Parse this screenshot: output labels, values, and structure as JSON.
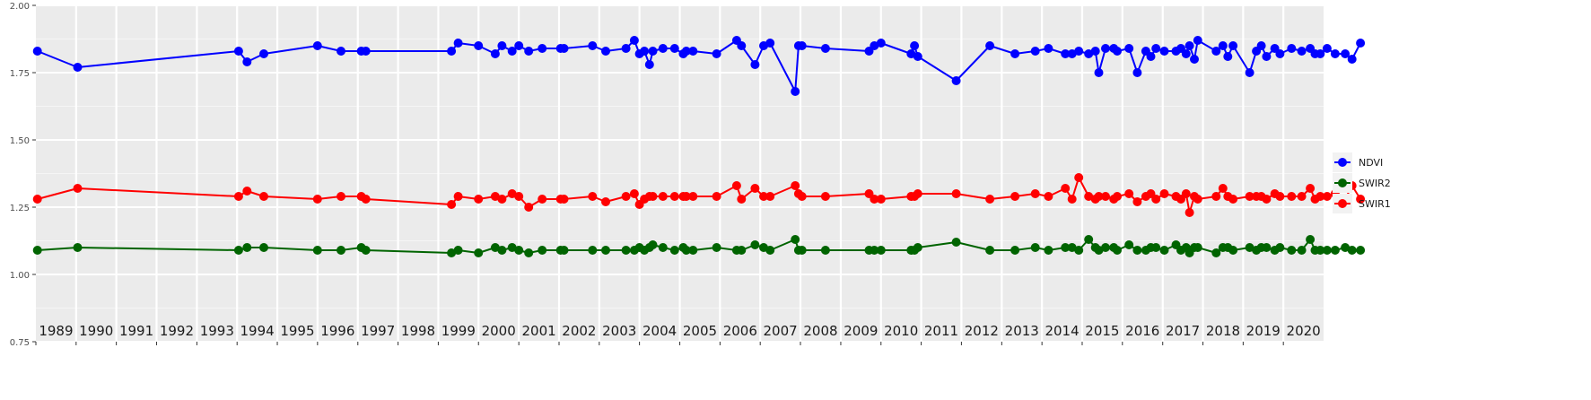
{
  "chart_data": {
    "type": "line",
    "title": "",
    "xlabel": "",
    "ylabel": "",
    "ylim": [
      0.75,
      2.0
    ],
    "xlim": [
      "1989-01-01",
      "2020-12-31"
    ],
    "y_ticks": [
      "0.75",
      "1.00",
      "1.25",
      "1.50",
      "1.75",
      "2.00"
    ],
    "year_labels": [
      "1989",
      "1990",
      "1991",
      "1992",
      "1993",
      "1994",
      "1995",
      "1996",
      "1997",
      "1998",
      "1999",
      "2000",
      "2001",
      "2002",
      "2003",
      "2004",
      "2005",
      "2006",
      "2007",
      "2008",
      "2009",
      "2010",
      "2011",
      "2012",
      "2013",
      "2014",
      "2015",
      "2016",
      "2017",
      "2018",
      "2019",
      "2020"
    ],
    "grid": true,
    "legend_position": "right",
    "series": [
      {
        "name": "NDVI",
        "color": "#0000ff",
        "x": [
          "1989-01-15",
          "1990-01-15",
          "1994-01-15",
          "1994-04-01",
          "1994-09-01",
          "1996-01-01",
          "1996-08-01",
          "1997-02-01",
          "1997-03-15",
          "1999-05-01",
          "1999-07-01",
          "2000-01-01",
          "2000-06-01",
          "2000-08-01",
          "2000-11-01",
          "2001-01-01",
          "2001-04-01",
          "2001-08-01",
          "2002-01-15",
          "2002-02-15",
          "2002-11-01",
          "2003-03-01",
          "2003-09-01",
          "2003-11-15",
          "2004-01-01",
          "2004-02-15",
          "2004-04-01",
          "2004-05-01",
          "2004-08-01",
          "2004-11-15",
          "2005-02-01",
          "2005-03-01",
          "2005-05-01",
          "2005-12-01",
          "2006-06-01",
          "2006-07-15",
          "2006-11-15",
          "2007-02-01",
          "2007-04-01",
          "2007-11-15",
          "2007-12-15",
          "2008-01-15",
          "2008-08-15",
          "2009-09-15",
          "2009-11-01",
          "2010-01-01",
          "2010-10-01",
          "2010-11-01",
          "2010-12-01",
          "2011-11-15",
          "2012-09-15",
          "2013-05-01",
          "2013-11-01",
          "2014-03-01",
          "2014-08-01",
          "2014-10-01",
          "2014-12-01",
          "2015-03-01",
          "2015-05-01",
          "2015-06-01",
          "2015-08-01",
          "2015-10-15",
          "2015-11-15",
          "2016-03-01",
          "2016-05-15",
          "2016-08-01",
          "2016-09-15",
          "2016-11-01",
          "2017-01-15",
          "2017-05-01",
          "2017-06-15",
          "2017-08-01",
          "2017-09-01",
          "2017-10-15",
          "2017-11-15",
          "2018-05-01",
          "2018-07-01",
          "2018-08-15",
          "2018-10-01",
          "2019-03-01",
          "2019-05-01",
          "2019-06-15",
          "2019-08-01",
          "2019-10-15",
          "2019-12-01",
          "2020-03-15",
          "2020-06-15",
          "2020-09-01",
          "2020-10-15",
          "2020-12-01",
          "2021-02-01",
          "2021-04-15",
          "2021-07-15",
          "2021-09-15",
          "2021-12-01"
        ],
        "values": [
          1.83,
          1.77,
          1.83,
          1.79,
          1.82,
          1.85,
          1.83,
          1.83,
          1.83,
          1.83,
          1.86,
          1.85,
          1.82,
          1.85,
          1.83,
          1.85,
          1.83,
          1.84,
          1.84,
          1.84,
          1.85,
          1.83,
          1.84,
          1.87,
          1.82,
          1.83,
          1.78,
          1.83,
          1.84,
          1.84,
          1.82,
          1.83,
          1.83,
          1.82,
          1.87,
          1.85,
          1.78,
          1.85,
          1.86,
          1.68,
          1.85,
          1.85,
          1.84,
          1.83,
          1.85,
          1.86,
          1.82,
          1.85,
          1.81,
          1.72,
          1.85,
          1.82,
          1.83,
          1.84,
          1.82,
          1.82,
          1.83,
          1.82,
          1.83,
          1.75,
          1.84,
          1.84,
          1.83,
          1.84,
          1.75,
          1.83,
          1.81,
          1.84,
          1.83,
          1.83,
          1.84,
          1.82,
          1.85,
          1.8,
          1.87,
          1.83,
          1.85,
          1.81,
          1.85,
          1.75,
          1.83,
          1.85,
          1.81,
          1.84,
          1.82,
          1.84,
          1.83,
          1.84,
          1.82,
          1.82,
          1.84,
          1.82,
          1.82,
          1.8,
          1.86
        ]
      },
      {
        "name": "SWIR2",
        "color": "#006400",
        "x": [
          "1989-01-15",
          "1990-01-15",
          "1994-01-15",
          "1994-04-01",
          "1994-09-01",
          "1996-01-01",
          "1996-08-01",
          "1997-02-01",
          "1997-03-15",
          "1999-05-01",
          "1999-07-01",
          "2000-01-01",
          "2000-06-01",
          "2000-08-01",
          "2000-11-01",
          "2001-01-01",
          "2001-04-01",
          "2001-08-01",
          "2002-01-15",
          "2002-02-15",
          "2002-11-01",
          "2003-03-01",
          "2003-09-01",
          "2003-11-15",
          "2004-01-01",
          "2004-02-15",
          "2004-04-01",
          "2004-05-01",
          "2004-08-01",
          "2004-11-15",
          "2005-02-01",
          "2005-03-01",
          "2005-05-01",
          "2005-12-01",
          "2006-06-01",
          "2006-07-15",
          "2006-11-15",
          "2007-02-01",
          "2007-04-01",
          "2007-11-15",
          "2007-12-15",
          "2008-01-15",
          "2008-08-15",
          "2009-09-15",
          "2009-11-01",
          "2010-01-01",
          "2010-10-01",
          "2010-11-01",
          "2010-12-01",
          "2011-11-15",
          "2012-09-15",
          "2013-05-01",
          "2013-11-01",
          "2014-03-01",
          "2014-08-01",
          "2014-10-01",
          "2014-12-01",
          "2015-03-01",
          "2015-05-01",
          "2015-06-01",
          "2015-08-01",
          "2015-10-15",
          "2015-11-15",
          "2016-03-01",
          "2016-05-15",
          "2016-08-01",
          "2016-09-15",
          "2016-11-01",
          "2017-01-15",
          "2017-05-01",
          "2017-06-15",
          "2017-08-01",
          "2017-09-01",
          "2017-10-15",
          "2017-11-15",
          "2018-05-01",
          "2018-07-01",
          "2018-08-15",
          "2018-10-01",
          "2019-03-01",
          "2019-05-01",
          "2019-06-15",
          "2019-08-01",
          "2019-10-15",
          "2019-12-01",
          "2020-03-15",
          "2020-06-15",
          "2020-09-01",
          "2020-10-15",
          "2020-12-01",
          "2021-02-01",
          "2021-04-15",
          "2021-07-15",
          "2021-09-15",
          "2021-12-01"
        ],
        "values": [
          1.09,
          1.1,
          1.09,
          1.1,
          1.1,
          1.09,
          1.09,
          1.1,
          1.09,
          1.08,
          1.09,
          1.08,
          1.1,
          1.09,
          1.1,
          1.09,
          1.08,
          1.09,
          1.09,
          1.09,
          1.09,
          1.09,
          1.09,
          1.09,
          1.1,
          1.09,
          1.1,
          1.11,
          1.1,
          1.09,
          1.1,
          1.09,
          1.09,
          1.1,
          1.09,
          1.09,
          1.11,
          1.1,
          1.09,
          1.13,
          1.09,
          1.09,
          1.09,
          1.09,
          1.09,
          1.09,
          1.09,
          1.09,
          1.1,
          1.12,
          1.09,
          1.09,
          1.1,
          1.09,
          1.1,
          1.1,
          1.09,
          1.13,
          1.1,
          1.09,
          1.1,
          1.1,
          1.09,
          1.11,
          1.09,
          1.09,
          1.1,
          1.1,
          1.09,
          1.11,
          1.09,
          1.1,
          1.08,
          1.1,
          1.1,
          1.08,
          1.1,
          1.1,
          1.09,
          1.1,
          1.09,
          1.1,
          1.1,
          1.09,
          1.1,
          1.09,
          1.09,
          1.13,
          1.09,
          1.09,
          1.09,
          1.09,
          1.1,
          1.09,
          1.09
        ]
      },
      {
        "name": "SWIR1",
        "color": "#ff0000",
        "x": [
          "1989-01-15",
          "1990-01-15",
          "1994-01-15",
          "1994-04-01",
          "1994-09-01",
          "1996-01-01",
          "1996-08-01",
          "1997-02-01",
          "1997-03-15",
          "1999-05-01",
          "1999-07-01",
          "2000-01-01",
          "2000-06-01",
          "2000-08-01",
          "2000-11-01",
          "2001-01-01",
          "2001-04-01",
          "2001-08-01",
          "2002-01-15",
          "2002-02-15",
          "2002-11-01",
          "2003-03-01",
          "2003-09-01",
          "2003-11-15",
          "2004-01-01",
          "2004-02-15",
          "2004-04-01",
          "2004-05-01",
          "2004-08-01",
          "2004-11-15",
          "2005-02-01",
          "2005-03-01",
          "2005-05-01",
          "2005-12-01",
          "2006-06-01",
          "2006-07-15",
          "2006-11-15",
          "2007-02-01",
          "2007-04-01",
          "2007-11-15",
          "2007-12-15",
          "2008-01-15",
          "2008-08-15",
          "2009-09-15",
          "2009-11-01",
          "2010-01-01",
          "2010-10-01",
          "2010-11-01",
          "2010-12-01",
          "2011-11-15",
          "2012-09-15",
          "2013-05-01",
          "2013-11-01",
          "2014-03-01",
          "2014-08-01",
          "2014-10-01",
          "2014-12-01",
          "2015-03-01",
          "2015-05-01",
          "2015-06-01",
          "2015-08-01",
          "2015-10-15",
          "2015-11-15",
          "2016-03-01",
          "2016-05-15",
          "2016-08-01",
          "2016-09-15",
          "2016-11-01",
          "2017-01-15",
          "2017-05-01",
          "2017-06-15",
          "2017-08-01",
          "2017-09-01",
          "2017-10-15",
          "2017-11-15",
          "2018-05-01",
          "2018-07-01",
          "2018-08-15",
          "2018-10-01",
          "2019-03-01",
          "2019-05-01",
          "2019-06-15",
          "2019-08-01",
          "2019-10-15",
          "2019-12-01",
          "2020-03-15",
          "2020-06-15",
          "2020-09-01",
          "2020-10-15",
          "2020-12-01",
          "2021-02-01",
          "2021-04-15",
          "2021-07-15",
          "2021-09-15",
          "2021-12-01"
        ],
        "values": [
          1.28,
          1.32,
          1.29,
          1.31,
          1.29,
          1.28,
          1.29,
          1.29,
          1.28,
          1.26,
          1.29,
          1.28,
          1.29,
          1.28,
          1.3,
          1.29,
          1.25,
          1.28,
          1.28,
          1.28,
          1.29,
          1.27,
          1.29,
          1.3,
          1.26,
          1.28,
          1.29,
          1.29,
          1.29,
          1.29,
          1.29,
          1.29,
          1.29,
          1.29,
          1.33,
          1.28,
          1.32,
          1.29,
          1.29,
          1.33,
          1.3,
          1.29,
          1.29,
          1.3,
          1.28,
          1.28,
          1.29,
          1.29,
          1.3,
          1.3,
          1.28,
          1.29,
          1.3,
          1.29,
          1.32,
          1.28,
          1.36,
          1.29,
          1.28,
          1.29,
          1.29,
          1.28,
          1.29,
          1.3,
          1.27,
          1.29,
          1.3,
          1.28,
          1.3,
          1.29,
          1.28,
          1.3,
          1.23,
          1.29,
          1.28,
          1.29,
          1.32,
          1.29,
          1.28,
          1.29,
          1.29,
          1.29,
          1.28,
          1.3,
          1.29,
          1.29,
          1.29,
          1.32,
          1.28,
          1.29,
          1.29,
          1.3,
          1.28,
          1.33,
          1.28
        ]
      }
    ]
  }
}
